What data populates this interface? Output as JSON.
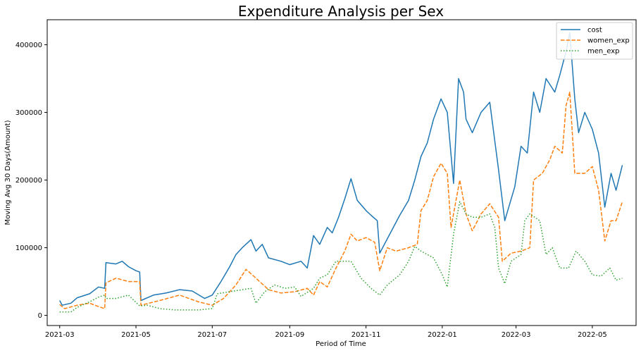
{
  "chart_data": {
    "type": "line",
    "title": "Expenditure Analysis per Sex",
    "xlabel": "Period of Time",
    "ylabel": "Moving Avg 30 Days(Amount)",
    "x_ticks": [
      "2021-03",
      "2021-05",
      "2021-07",
      "2021-09",
      "2021-11",
      "2022-01",
      "2022-03",
      "2022-05"
    ],
    "y_ticks": [
      0,
      100000,
      200000,
      300000,
      400000
    ],
    "y_tick_labels": [
      "0",
      "100000",
      "200000",
      "300000",
      "400000"
    ],
    "xlim": [
      "2021-02-19",
      "2022-06-05"
    ],
    "ylim": [
      -15000,
      437000
    ],
    "grid": false,
    "legend": "top-right",
    "series": [
      {
        "name": "cost",
        "color": "#1f77b4",
        "style": "solid",
        "points": [
          [
            "2021-03-01",
            22000
          ],
          [
            "2021-03-03",
            15000
          ],
          [
            "2021-03-10",
            18000
          ],
          [
            "2021-03-15",
            26000
          ],
          [
            "2021-03-25",
            32000
          ],
          [
            "2021-04-01",
            42000
          ],
          [
            "2021-04-06",
            40000
          ],
          [
            "2021-04-07",
            78000
          ],
          [
            "2021-04-15",
            76000
          ],
          [
            "2021-04-20",
            80000
          ],
          [
            "2021-04-25",
            72000
          ],
          [
            "2021-05-01",
            66000
          ],
          [
            "2021-05-04",
            64000
          ],
          [
            "2021-05-05",
            22000
          ],
          [
            "2021-05-15",
            30000
          ],
          [
            "2021-05-25",
            33000
          ],
          [
            "2021-06-05",
            38000
          ],
          [
            "2021-06-15",
            36000
          ],
          [
            "2021-06-25",
            25000
          ],
          [
            "2021-07-01",
            30000
          ],
          [
            "2021-07-08",
            50000
          ],
          [
            "2021-07-15",
            72000
          ],
          [
            "2021-07-20",
            90000
          ],
          [
            "2021-07-25",
            100000
          ],
          [
            "2021-08-01",
            112000
          ],
          [
            "2021-08-05",
            95000
          ],
          [
            "2021-08-10",
            105000
          ],
          [
            "2021-08-15",
            85000
          ],
          [
            "2021-08-25",
            80000
          ],
          [
            "2021-09-01",
            75000
          ],
          [
            "2021-09-10",
            80000
          ],
          [
            "2021-09-15",
            70000
          ],
          [
            "2021-09-20",
            118000
          ],
          [
            "2021-09-25",
            105000
          ],
          [
            "2021-10-01",
            130000
          ],
          [
            "2021-10-05",
            122000
          ],
          [
            "2021-10-10",
            145000
          ],
          [
            "2021-10-15",
            172000
          ],
          [
            "2021-10-20",
            202000
          ],
          [
            "2021-10-25",
            170000
          ],
          [
            "2021-11-01",
            155000
          ],
          [
            "2021-11-05",
            148000
          ],
          [
            "2021-11-10",
            140000
          ],
          [
            "2021-11-12",
            92000
          ],
          [
            "2021-11-20",
            120000
          ],
          [
            "2021-11-28",
            148000
          ],
          [
            "2021-12-05",
            170000
          ],
          [
            "2021-12-10",
            200000
          ],
          [
            "2021-12-15",
            235000
          ],
          [
            "2021-12-20",
            255000
          ],
          [
            "2021-12-25",
            290000
          ],
          [
            "2021-12-31",
            320000
          ],
          [
            "2022-01-05",
            300000
          ],
          [
            "2022-01-10",
            195000
          ],
          [
            "2022-01-14",
            350000
          ],
          [
            "2022-01-18",
            330000
          ],
          [
            "2022-01-20",
            290000
          ],
          [
            "2022-01-25",
            270000
          ],
          [
            "2022-02-01",
            300000
          ],
          [
            "2022-02-08",
            315000
          ],
          [
            "2022-02-15",
            215000
          ],
          [
            "2022-02-20",
            140000
          ],
          [
            "2022-02-28",
            190000
          ],
          [
            "2022-03-05",
            250000
          ],
          [
            "2022-03-10",
            240000
          ],
          [
            "2022-03-15",
            330000
          ],
          [
            "2022-03-20",
            300000
          ],
          [
            "2022-03-25",
            350000
          ],
          [
            "2022-04-01",
            330000
          ],
          [
            "2022-04-05",
            355000
          ],
          [
            "2022-04-10",
            390000
          ],
          [
            "2022-04-13",
            418000
          ],
          [
            "2022-04-17",
            320000
          ],
          [
            "2022-04-20",
            270000
          ],
          [
            "2022-04-25",
            300000
          ],
          [
            "2022-05-01",
            275000
          ],
          [
            "2022-05-06",
            240000
          ],
          [
            "2022-05-11",
            160000
          ],
          [
            "2022-05-16",
            210000
          ],
          [
            "2022-05-20",
            185000
          ],
          [
            "2022-05-25",
            222000
          ]
        ]
      },
      {
        "name": "women_exp",
        "color": "#ff7f0e",
        "style": "dashed",
        "points": [
          [
            "2021-03-01",
            16000
          ],
          [
            "2021-03-05",
            10000
          ],
          [
            "2021-03-15",
            15000
          ],
          [
            "2021-03-25",
            18000
          ],
          [
            "2021-04-01",
            13000
          ],
          [
            "2021-04-06",
            10000
          ],
          [
            "2021-04-07",
            48000
          ],
          [
            "2021-04-15",
            55000
          ],
          [
            "2021-04-25",
            50000
          ],
          [
            "2021-05-04",
            50000
          ],
          [
            "2021-05-05",
            15000
          ],
          [
            "2021-05-20",
            22000
          ],
          [
            "2021-06-05",
            30000
          ],
          [
            "2021-06-20",
            20000
          ],
          [
            "2021-07-01",
            15000
          ],
          [
            "2021-07-10",
            25000
          ],
          [
            "2021-07-20",
            45000
          ],
          [
            "2021-07-28",
            68000
          ],
          [
            "2021-08-05",
            55000
          ],
          [
            "2021-08-15",
            38000
          ],
          [
            "2021-08-25",
            33000
          ],
          [
            "2021-09-05",
            35000
          ],
          [
            "2021-09-15",
            40000
          ],
          [
            "2021-09-20",
            30000
          ],
          [
            "2021-09-25",
            50000
          ],
          [
            "2021-10-01",
            42000
          ],
          [
            "2021-10-08",
            70000
          ],
          [
            "2021-10-15",
            95000
          ],
          [
            "2021-10-20",
            120000
          ],
          [
            "2021-10-25",
            110000
          ],
          [
            "2021-11-01",
            115000
          ],
          [
            "2021-11-08",
            108000
          ],
          [
            "2021-11-12",
            66000
          ],
          [
            "2021-11-18",
            100000
          ],
          [
            "2021-11-25",
            95000
          ],
          [
            "2021-12-05",
            100000
          ],
          [
            "2021-12-12",
            105000
          ],
          [
            "2021-12-15",
            155000
          ],
          [
            "2021-12-20",
            170000
          ],
          [
            "2021-12-25",
            205000
          ],
          [
            "2021-12-31",
            225000
          ],
          [
            "2022-01-05",
            210000
          ],
          [
            "2022-01-08",
            130000
          ],
          [
            "2022-01-12",
            170000
          ],
          [
            "2022-01-15",
            200000
          ],
          [
            "2022-01-20",
            150000
          ],
          [
            "2022-01-25",
            125000
          ],
          [
            "2022-02-01",
            150000
          ],
          [
            "2022-02-08",
            165000
          ],
          [
            "2022-02-15",
            145000
          ],
          [
            "2022-02-18",
            80000
          ],
          [
            "2022-02-25",
            92000
          ],
          [
            "2022-03-05",
            95000
          ],
          [
            "2022-03-12",
            100000
          ],
          [
            "2022-03-15",
            200000
          ],
          [
            "2022-03-22",
            210000
          ],
          [
            "2022-03-28",
            230000
          ],
          [
            "2022-04-01",
            250000
          ],
          [
            "2022-04-07",
            240000
          ],
          [
            "2022-04-10",
            310000
          ],
          [
            "2022-04-13",
            330000
          ],
          [
            "2022-04-17",
            210000
          ],
          [
            "2022-04-25",
            210000
          ],
          [
            "2022-05-01",
            220000
          ],
          [
            "2022-05-06",
            185000
          ],
          [
            "2022-05-11",
            110000
          ],
          [
            "2022-05-16",
            140000
          ],
          [
            "2022-05-20",
            140000
          ],
          [
            "2022-05-25",
            168000
          ]
        ]
      },
      {
        "name": "men_exp",
        "color": "#2ca02c",
        "style": "dotted",
        "points": [
          [
            "2021-03-01",
            5000
          ],
          [
            "2021-03-10",
            5000
          ],
          [
            "2021-03-15",
            12000
          ],
          [
            "2021-03-25",
            20000
          ],
          [
            "2021-04-01",
            27000
          ],
          [
            "2021-04-06",
            30000
          ],
          [
            "2021-04-07",
            25000
          ],
          [
            "2021-04-15",
            25000
          ],
          [
            "2021-04-25",
            30000
          ],
          [
            "2021-05-04",
            14000
          ],
          [
            "2021-05-10",
            15000
          ],
          [
            "2021-05-20",
            10000
          ],
          [
            "2021-06-01",
            8000
          ],
          [
            "2021-06-20",
            8000
          ],
          [
            "2021-07-01",
            10000
          ],
          [
            "2021-07-05",
            32000
          ],
          [
            "2021-07-15",
            35000
          ],
          [
            "2021-07-25",
            38000
          ],
          [
            "2021-08-01",
            40000
          ],
          [
            "2021-08-05",
            18000
          ],
          [
            "2021-08-12",
            35000
          ],
          [
            "2021-08-20",
            45000
          ],
          [
            "2021-08-28",
            40000
          ],
          [
            "2021-09-05",
            42000
          ],
          [
            "2021-09-10",
            28000
          ],
          [
            "2021-09-20",
            40000
          ],
          [
            "2021-09-25",
            55000
          ],
          [
            "2021-10-01",
            60000
          ],
          [
            "2021-10-08",
            80000
          ],
          [
            "2021-10-20",
            80000
          ],
          [
            "2021-10-28",
            55000
          ],
          [
            "2021-11-05",
            40000
          ],
          [
            "2021-11-12",
            30000
          ],
          [
            "2021-11-18",
            45000
          ],
          [
            "2021-11-28",
            60000
          ],
          [
            "2021-12-05",
            80000
          ],
          [
            "2021-12-10",
            102000
          ],
          [
            "2021-12-15",
            95000
          ],
          [
            "2021-12-20",
            90000
          ],
          [
            "2021-12-25",
            85000
          ],
          [
            "2022-01-01",
            60000
          ],
          [
            "2022-01-05",
            42000
          ],
          [
            "2022-01-10",
            120000
          ],
          [
            "2022-01-15",
            168000
          ],
          [
            "2022-01-20",
            150000
          ],
          [
            "2022-01-25",
            145000
          ],
          [
            "2022-02-01",
            145000
          ],
          [
            "2022-02-08",
            150000
          ],
          [
            "2022-02-12",
            130000
          ],
          [
            "2022-02-15",
            70000
          ],
          [
            "2022-02-20",
            47000
          ],
          [
            "2022-02-25",
            80000
          ],
          [
            "2022-03-05",
            90000
          ],
          [
            "2022-03-08",
            140000
          ],
          [
            "2022-03-12",
            150000
          ],
          [
            "2022-03-20",
            140000
          ],
          [
            "2022-03-25",
            90000
          ],
          [
            "2022-03-30",
            100000
          ],
          [
            "2022-04-05",
            70000
          ],
          [
            "2022-04-12",
            70000
          ],
          [
            "2022-04-18",
            95000
          ],
          [
            "2022-04-25",
            80000
          ],
          [
            "2022-05-01",
            60000
          ],
          [
            "2022-05-08",
            58000
          ],
          [
            "2022-05-15",
            70000
          ],
          [
            "2022-05-20",
            52000
          ],
          [
            "2022-05-25",
            55000
          ]
        ]
      }
    ]
  }
}
